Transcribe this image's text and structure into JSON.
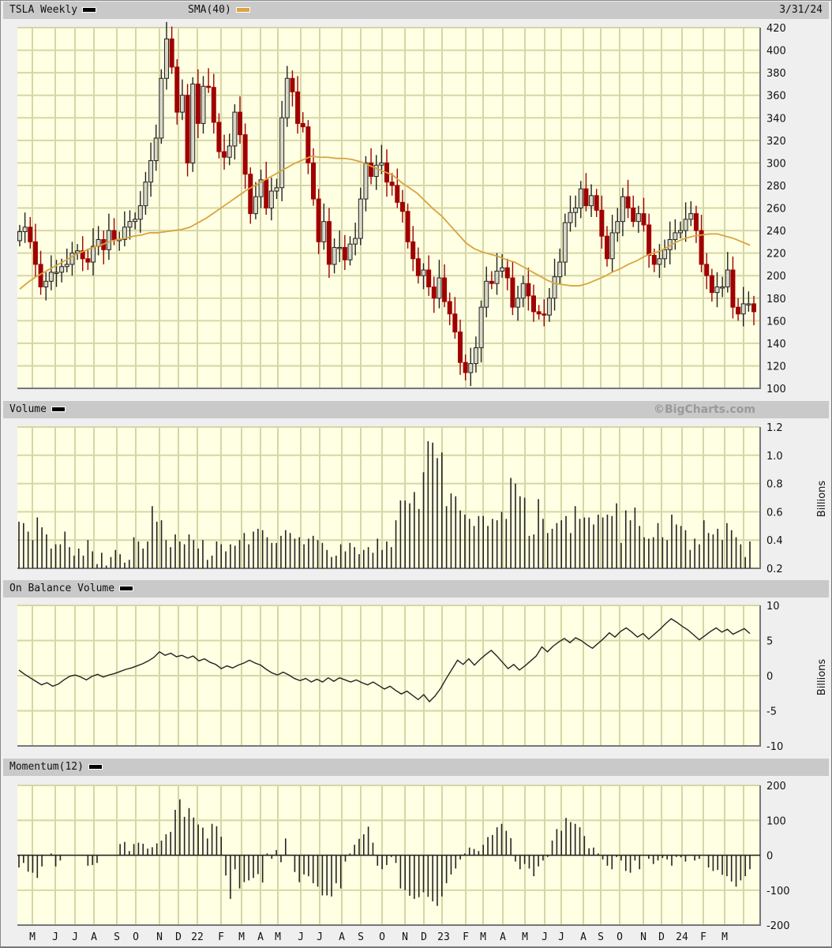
{
  "header": {
    "title": "TSLA Weekly",
    "title_swatch_color": "#000000",
    "sma_label": "SMA(40)",
    "sma_color": "#d9a441",
    "date": "3/31/24"
  },
  "volume_panel": {
    "title": "Volume",
    "copyright": "©BigCharts.com",
    "unit_label": "Billions"
  },
  "obv_panel": {
    "title": "On Balance Volume",
    "unit_label": "Billions"
  },
  "momentum_panel": {
    "title": "Momentum(12)"
  },
  "colors": {
    "plot_bg": "#ffffe3",
    "grid": "#d6d6a6",
    "up_candle_fill": "#d8d8c8",
    "down_candle": "#a00000",
    "line": "#222222"
  },
  "chart_data": [
    {
      "type": "candlestick",
      "title": "TSLA Weekly",
      "series": [
        {
          "name": "SMA(40)",
          "color": "#d9a441"
        }
      ],
      "ylim": [
        100,
        420
      ],
      "yticks": [
        100,
        120,
        140,
        160,
        180,
        200,
        220,
        240,
        260,
        280,
        300,
        320,
        340,
        360,
        380,
        400,
        420
      ],
      "xticks": [
        "M",
        "J",
        "J",
        "A",
        "S",
        "O",
        "N",
        "D",
        "22",
        "F",
        "M",
        "A",
        "M",
        "J",
        "J",
        "A",
        "S",
        "O",
        "N",
        "D",
        "23",
        "F",
        "M",
        "A",
        "M",
        "J",
        "J",
        "A",
        "S",
        "O",
        "N",
        "D",
        "24",
        "F",
        "M"
      ],
      "close": [
        239,
        243,
        230,
        210,
        190,
        195,
        203,
        203,
        208,
        210,
        220,
        222,
        215,
        212,
        226,
        232,
        223,
        240,
        232,
        232,
        243,
        248,
        250,
        262,
        283,
        302,
        322,
        375,
        410,
        385,
        345,
        360,
        300,
        370,
        335,
        368,
        367,
        336,
        310,
        305,
        315,
        345,
        325,
        290,
        255,
        270,
        285,
        260,
        275,
        278,
        340,
        375,
        363,
        335,
        332,
        300,
        268,
        230,
        248,
        210,
        225,
        225,
        214,
        228,
        233,
        268,
        300,
        288,
        298,
        300,
        283,
        280,
        265,
        257,
        230,
        215,
        200,
        205,
        190,
        180,
        198,
        177,
        166,
        150,
        123,
        114,
        122,
        136,
        172,
        195,
        193,
        204,
        207,
        198,
        172,
        180,
        193,
        182,
        168,
        166,
        165,
        180,
        199,
        212,
        247,
        256,
        260,
        277,
        262,
        271,
        258,
        235,
        215,
        238,
        248,
        270,
        260,
        248,
        255,
        245,
        218,
        210,
        215,
        223,
        232,
        238,
        240,
        250,
        255,
        240,
        210,
        200,
        185,
        190,
        190,
        205,
        172,
        166,
        175,
        175,
        168
      ],
      "sma": [
        188,
        194,
        199,
        203,
        207,
        211,
        215,
        219,
        222,
        225,
        227,
        230,
        232,
        233,
        235,
        236,
        238,
        238,
        239,
        240,
        241,
        243,
        247,
        251,
        256,
        261,
        266,
        271,
        276,
        280,
        284,
        288,
        292,
        296,
        300,
        303,
        306,
        305,
        305,
        304,
        304,
        303,
        301,
        298,
        295,
        292,
        289,
        283,
        278,
        273,
        266,
        259,
        253,
        245,
        237,
        229,
        224,
        221,
        219,
        217,
        214,
        212,
        208,
        204,
        200,
        196,
        193,
        192,
        191,
        191,
        193,
        196,
        199,
        203,
        206,
        210,
        213,
        217,
        220,
        222,
        226,
        230,
        233,
        235,
        236,
        237,
        237,
        235,
        233,
        230,
        227
      ],
      "volume": {
        "ylim": [
          0.2,
          1.2
        ],
        "yticks": [
          0.2,
          0.4,
          0.6,
          0.8,
          1.0,
          1.2
        ],
        "values": [
          0.53,
          0.52,
          0.46,
          0.4,
          0.56,
          0.49,
          0.44,
          0.34,
          0.37,
          0.37,
          0.46,
          0.35,
          0.29,
          0.34,
          0.29,
          0.4,
          0.32,
          0.23,
          0.31,
          0.22,
          0.28,
          0.33,
          0.3,
          0.24,
          0.26,
          0.42,
          0.39,
          0.34,
          0.39,
          0.64,
          0.53,
          0.54,
          0.4,
          0.35,
          0.44,
          0.39,
          0.37,
          0.44,
          0.4,
          0.34,
          0.4,
          0.26,
          0.29,
          0.39,
          0.37,
          0.32,
          0.37,
          0.36,
          0.4,
          0.45,
          0.37,
          0.46,
          0.48,
          0.47,
          0.42,
          0.38,
          0.38,
          0.43,
          0.47,
          0.45,
          0.41,
          0.42,
          0.37,
          0.41,
          0.43,
          0.4,
          0.38,
          0.33,
          0.28,
          0.29,
          0.37,
          0.32,
          0.38,
          0.35,
          0.3,
          0.33,
          0.35,
          0.31,
          0.41,
          0.33,
          0.39,
          0.35,
          0.54,
          0.68,
          0.68,
          0.66,
          0.74,
          0.62,
          0.88,
          1.1,
          1.09,
          0.98,
          1.02,
          0.64,
          0.73,
          0.71,
          0.61,
          0.58,
          0.55,
          0.5,
          0.57,
          0.57,
          0.5,
          0.55,
          0.54,
          0.6,
          0.55,
          0.84,
          0.8,
          0.71,
          0.7,
          0.43,
          0.44,
          0.69,
          0.55,
          0.45,
          0.48,
          0.52,
          0.54,
          0.57,
          0.45,
          0.64,
          0.55,
          0.56,
          0.56,
          0.51,
          0.58,
          0.56,
          0.58,
          0.57,
          0.66,
          0.38,
          0.61,
          0.54,
          0.63,
          0.5,
          0.42,
          0.41,
          0.42,
          0.52,
          0.42,
          0.4,
          0.58,
          0.51,
          0.5,
          0.47,
          0.33,
          0.41,
          0.37,
          0.54,
          0.45,
          0.44,
          0.48,
          0.4,
          0.52,
          0.47,
          0.42,
          0.37,
          0.28,
          0.39
        ]
      },
      "obv": {
        "ylim": [
          -10,
          10
        ],
        "yticks": [
          -10,
          -5,
          0,
          5,
          10
        ],
        "values": [
          0.8,
          0.2,
          -0.3,
          -0.8,
          -1.3,
          -1.0,
          -1.5,
          -1.2,
          -0.6,
          -0.1,
          0.1,
          -0.2,
          -0.6,
          -0.1,
          0.2,
          -0.2,
          0.1,
          0.3,
          0.6,
          0.9,
          1.1,
          1.4,
          1.7,
          2.1,
          2.6,
          3.4,
          2.9,
          3.2,
          2.7,
          2.9,
          2.5,
          2.8,
          2.1,
          2.4,
          1.9,
          1.6,
          1.0,
          1.4,
          1.1,
          1.5,
          1.8,
          2.2,
          1.8,
          1.5,
          0.9,
          0.4,
          0.1,
          0.5,
          0.1,
          -0.4,
          -0.7,
          -0.4,
          -0.9,
          -0.5,
          -0.9,
          -0.3,
          -0.8,
          -0.3,
          -0.6,
          -0.9,
          -0.6,
          -1.0,
          -1.3,
          -0.9,
          -1.4,
          -1.9,
          -1.5,
          -2.1,
          -2.6,
          -2.2,
          -2.8,
          -3.4,
          -2.7,
          -3.7,
          -2.9,
          -1.8,
          -0.4,
          0.9,
          2.2,
          1.6,
          2.4,
          1.5,
          2.3,
          3.0,
          3.6,
          2.8,
          1.9,
          1.0,
          1.6,
          0.8,
          1.4,
          2.1,
          2.8,
          4.1,
          3.4,
          4.2,
          4.8,
          5.3,
          4.7,
          5.4,
          5.0,
          4.4,
          3.9,
          4.6,
          5.3,
          6.1,
          5.5,
          6.3,
          6.8,
          6.2,
          5.5,
          6.0,
          5.2,
          5.9,
          6.6,
          7.4,
          8.1,
          7.6,
          7.0,
          6.5,
          5.8,
          5.1,
          5.7,
          6.3,
          6.8,
          6.2,
          6.6,
          5.9,
          6.3,
          6.7,
          6.0
        ]
      },
      "momentum": {
        "ylim": [
          -200,
          200
        ],
        "yticks": [
          -200,
          -100,
          0,
          100,
          200
        ],
        "values": [
          -35,
          -22,
          -47,
          -50,
          -65,
          -32,
          0,
          5,
          -32,
          -15,
          0,
          0,
          0,
          0,
          0,
          -30,
          -28,
          -22,
          0,
          0,
          0,
          0,
          32,
          38,
          12,
          32,
          36,
          33,
          19,
          23,
          34,
          42,
          60,
          67,
          130,
          160,
          110,
          135,
          108,
          88,
          79,
          48,
          90,
          83,
          53,
          -58,
          -125,
          -40,
          -95,
          -77,
          -72,
          -65,
          -54,
          -78,
          5,
          -10,
          15,
          -20,
          48,
          0,
          -48,
          -77,
          -55,
          -60,
          -80,
          -90,
          -115,
          -115,
          -118,
          -80,
          -95,
          -18,
          5,
          30,
          47,
          60,
          82,
          36,
          -30,
          -40,
          -28,
          -5,
          -22,
          -95,
          -100,
          -116,
          -125,
          -120,
          -106,
          -119,
          -132,
          -145,
          -118,
          -80,
          -55,
          -38,
          -12,
          5,
          22,
          18,
          12,
          30,
          52,
          58,
          80,
          90,
          70,
          49,
          -18,
          -40,
          -25,
          -38,
          -60,
          -32,
          -15,
          -5,
          42,
          75,
          70,
          107,
          95,
          90,
          80,
          55,
          20,
          22,
          5,
          -12,
          -30,
          -40,
          -5,
          -15,
          -45,
          -50,
          -15,
          -40,
          0,
          -10,
          -25,
          -15,
          -8,
          -12,
          -30,
          -5,
          -6,
          -18,
          0,
          -15,
          -10,
          0,
          -35,
          -45,
          -42,
          -56,
          -60,
          -75,
          -90,
          -72,
          -60,
          -40
        ]
      }
    }
  ]
}
